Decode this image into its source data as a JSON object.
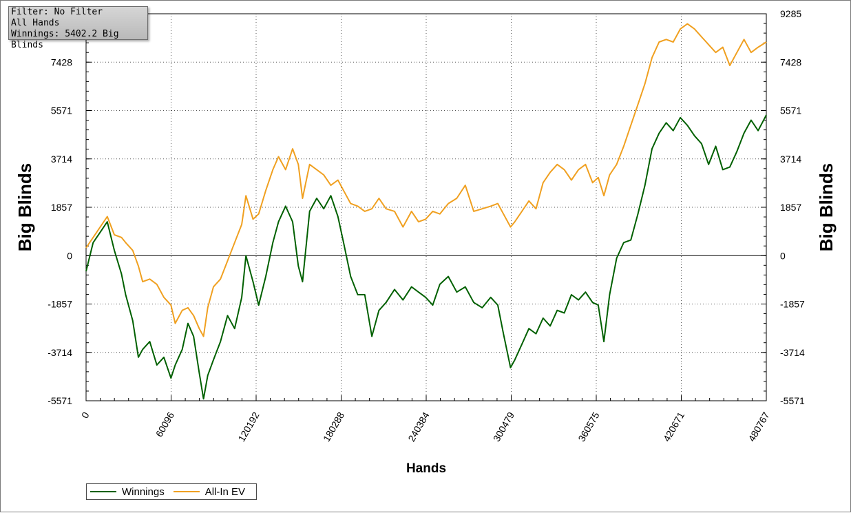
{
  "filter_box": {
    "line1": "Filter: No Filter",
    "line2": "All Hands",
    "line3": "Winnings: 5402.2 Big Blinds"
  },
  "chart_data": {
    "type": "line",
    "xlabel": "Hands",
    "ylabel_left": "Big Blinds",
    "ylabel_right": "Big Blinds",
    "xlim": [
      0,
      480767
    ],
    "ylim": [
      -5571,
      9285
    ],
    "x_ticks": [
      0,
      60096,
      120192,
      180288,
      240384,
      300479,
      360575,
      420671,
      480767
    ],
    "x_tick_labels": [
      "0",
      "60096",
      "120192",
      "180288",
      "240384",
      "300479",
      "360575",
      "420671",
      "480767"
    ],
    "y_ticks_left": [
      -5571,
      -3714,
      -1857,
      0,
      1857,
      3714,
      5571,
      7428
    ],
    "y_tick_labels_left": [
      "-5571",
      "-3714",
      "-1857",
      "0",
      "1857",
      "3714",
      "5571",
      "7428"
    ],
    "y_ticks_right": [
      -5571,
      -3714,
      -1857,
      0,
      1857,
      3714,
      5571,
      7428,
      9285
    ],
    "y_tick_labels_right": [
      "-5571",
      "-3714",
      "-1857",
      "0",
      "1857",
      "3714",
      "5571",
      "7428",
      "9285"
    ],
    "grid": true,
    "legend_position": "bottom-left",
    "series": [
      {
        "name": "Winnings",
        "color": "#006000",
        "x": [
          0,
          5000,
          10000,
          15000,
          20000,
          25000,
          28000,
          33000,
          37000,
          40000,
          45000,
          50000,
          55000,
          60000,
          63000,
          68000,
          72000,
          76000,
          80000,
          83000,
          86000,
          90000,
          95000,
          100000,
          105000,
          110000,
          113000,
          118000,
          122000,
          127000,
          132000,
          136000,
          141000,
          146000,
          150000,
          153000,
          158000,
          163000,
          168000,
          173000,
          178000,
          182000,
          187000,
          192000,
          197000,
          202000,
          207000,
          212000,
          218000,
          224000,
          230000,
          235000,
          240000,
          245000,
          250000,
          256000,
          262000,
          268000,
          274000,
          280000,
          286000,
          291000,
          295000,
          300000,
          303000,
          308000,
          313000,
          318000,
          323000,
          328000,
          333000,
          338000,
          343000,
          348000,
          353000,
          358000,
          362000,
          366000,
          370000,
          375000,
          380000,
          385000,
          390000,
          395000,
          400000,
          405000,
          410000,
          415000,
          420000,
          425000,
          430000,
          435000,
          440000,
          445000,
          450000,
          455000,
          460000,
          465000,
          470000,
          475000,
          480767
        ],
        "y": [
          -600,
          500,
          900,
          1300,
          200,
          -700,
          -1500,
          -2500,
          -3900,
          -3600,
          -3300,
          -4200,
          -3900,
          -4700,
          -4200,
          -3600,
          -2600,
          -3100,
          -4500,
          -5500,
          -4600,
          -4000,
          -3300,
          -2300,
          -2800,
          -1600,
          0,
          -1000,
          -1900,
          -800,
          500,
          1300,
          1900,
          1300,
          -400,
          -1000,
          1700,
          2200,
          1800,
          2300,
          1500,
          500,
          -800,
          -1500,
          -1500,
          -3100,
          -2100,
          -1800,
          -1300,
          -1700,
          -1200,
          -1400,
          -1600,
          -1900,
          -1100,
          -800,
          -1400,
          -1200,
          -1800,
          -2000,
          -1600,
          -1900,
          -3000,
          -4300,
          -4000,
          -3400,
          -2800,
          -3000,
          -2400,
          -2700,
          -2100,
          -2200,
          -1500,
          -1700,
          -1400,
          -1800,
          -1900,
          -3300,
          -1500,
          -100,
          500,
          600,
          1600,
          2700,
          4100,
          4700,
          5100,
          4800,
          5300,
          5000,
          4600,
          4300,
          3500,
          4200,
          3300,
          3400,
          4000,
          4700,
          5200,
          4800,
          5400
        ]
      },
      {
        "name": "All-In EV",
        "color": "#f0a020",
        "x": [
          0,
          5000,
          10000,
          15000,
          20000,
          25000,
          28000,
          33000,
          37000,
          40000,
          45000,
          50000,
          55000,
          60000,
          63000,
          68000,
          72000,
          76000,
          80000,
          83000,
          86000,
          90000,
          95000,
          100000,
          105000,
          110000,
          113000,
          118000,
          122000,
          127000,
          132000,
          136000,
          141000,
          146000,
          150000,
          153000,
          158000,
          163000,
          168000,
          173000,
          178000,
          182000,
          187000,
          192000,
          197000,
          202000,
          207000,
          212000,
          218000,
          224000,
          230000,
          235000,
          240000,
          245000,
          250000,
          256000,
          262000,
          268000,
          274000,
          280000,
          286000,
          291000,
          295000,
          300000,
          303000,
          308000,
          313000,
          318000,
          323000,
          328000,
          333000,
          338000,
          343000,
          348000,
          353000,
          358000,
          362000,
          366000,
          370000,
          375000,
          380000,
          385000,
          390000,
          395000,
          400000,
          405000,
          410000,
          415000,
          420000,
          425000,
          430000,
          435000,
          440000,
          445000,
          450000,
          455000,
          460000,
          465000,
          470000,
          475000,
          480767
        ],
        "y": [
          300,
          700,
          1100,
          1500,
          800,
          700,
          500,
          200,
          -400,
          -1000,
          -900,
          -1100,
          -1600,
          -1900,
          -2600,
          -2100,
          -2000,
          -2300,
          -2800,
          -3100,
          -2000,
          -1200,
          -900,
          -200,
          500,
          1200,
          2300,
          1400,
          1600,
          2500,
          3300,
          3800,
          3300,
          4100,
          3500,
          2200,
          3500,
          3300,
          3100,
          2700,
          2900,
          2500,
          2000,
          1900,
          1700,
          1800,
          2200,
          1800,
          1700,
          1100,
          1700,
          1300,
          1400,
          1700,
          1600,
          2000,
          2200,
          2700,
          1700,
          1800,
          1900,
          2000,
          1600,
          1100,
          1300,
          1700,
          2100,
          1800,
          2800,
          3200,
          3500,
          3300,
          2900,
          3300,
          3500,
          2800,
          3000,
          2300,
          3100,
          3500,
          4200,
          5000,
          5800,
          6600,
          7600,
          8200,
          8300,
          8200,
          8700,
          8900,
          8700,
          8400,
          8100,
          7800,
          8000,
          7300,
          7800,
          8300,
          7800,
          8000,
          8200
        ]
      }
    ]
  }
}
